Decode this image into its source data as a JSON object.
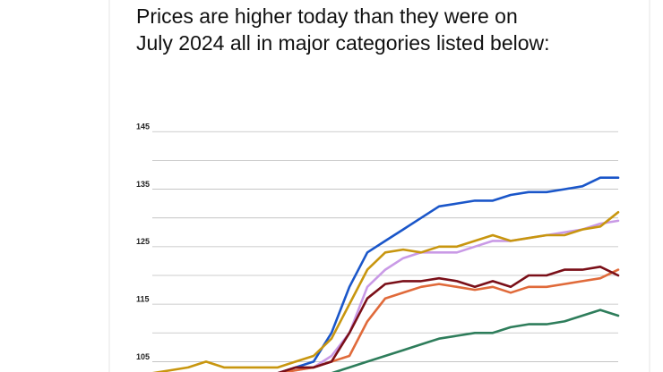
{
  "chart_data": {
    "type": "line",
    "title_lines": [
      "Prices are higher today than they were on",
      "July 2024 all in major categories listed below:"
    ],
    "ylim": [
      103.2,
      147
    ],
    "yticks": [
      105,
      115,
      125,
      135,
      145
    ],
    "yticks_minor": [
      110,
      120,
      130,
      140
    ],
    "grid": true,
    "series": [
      {
        "color": "#1a56c9",
        "values": [
          103,
          103,
          103,
          103,
          103,
          103,
          103,
          103,
          104,
          105,
          110,
          118,
          124,
          126,
          128,
          130,
          132,
          132.5,
          133,
          133,
          134,
          134.5,
          134.5,
          135,
          135.5,
          137,
          137
        ]
      },
      {
        "color": "#c99ae6",
        "values": [
          103,
          103,
          103,
          103,
          103,
          103,
          103,
          103,
          103.5,
          104,
          106,
          110,
          118,
          121,
          123,
          124,
          124,
          124,
          125,
          126,
          126,
          126.5,
          127,
          127.5,
          128,
          129,
          129.5
        ]
      },
      {
        "color": "#c8960f",
        "values": [
          103,
          103.5,
          104,
          105,
          104,
          104,
          104,
          104,
          105,
          106,
          109,
          115,
          121,
          124,
          124.5,
          124,
          125,
          125,
          126,
          127,
          126,
          126.5,
          127,
          127,
          128,
          128.5,
          131
        ]
      },
      {
        "color": "#e06a3a",
        "values": [
          103,
          103,
          103,
          103,
          103,
          103,
          103,
          103,
          103.5,
          104,
          105,
          106,
          112,
          116,
          117,
          118,
          118.5,
          118,
          117.5,
          118,
          117,
          118,
          118,
          118.5,
          119,
          119.5,
          121
        ]
      },
      {
        "color": "#7a0f18",
        "values": [
          103,
          103,
          103,
          103,
          103,
          103,
          103,
          103,
          104,
          104,
          105,
          110,
          116,
          118.5,
          119,
          119,
          119.5,
          119,
          118,
          119,
          118,
          120,
          120,
          121,
          121,
          121.5,
          120
        ]
      },
      {
        "color": "#2e7d5b",
        "values": [
          103,
          103,
          103,
          103,
          103,
          103,
          103,
          103,
          103,
          103,
          103,
          104,
          105,
          106,
          107,
          108,
          109,
          109.5,
          110,
          110,
          111,
          111.5,
          111.5,
          112,
          113,
          114,
          113
        ]
      }
    ]
  }
}
